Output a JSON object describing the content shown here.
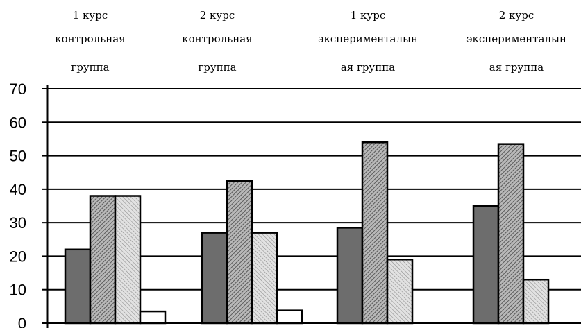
{
  "chart_data": {
    "type": "bar",
    "title": "",
    "xlabel": "",
    "ylabel": "",
    "ylim": [
      0,
      70
    ],
    "yticks": [
      0,
      10,
      20,
      30,
      40,
      50,
      60,
      70
    ],
    "grid": true,
    "legend": "none",
    "categories": [
      [
        "1 курс",
        "контрольная",
        "группа"
      ],
      [
        "2 курс",
        "контрольная",
        "группа"
      ],
      [
        "1 курс",
        "эксперименталын",
        "ая группа"
      ],
      [
        "2 курс",
        "эксперименталын",
        "ая группа"
      ]
    ],
    "series": [
      {
        "values": [
          22,
          27,
          28.5,
          35
        ],
        "pattern": "solid-dark"
      },
      {
        "values": [
          38,
          42.5,
          54,
          53.5
        ],
        "pattern": "hatch-dark"
      },
      {
        "values": [
          38,
          27,
          19,
          13
        ],
        "pattern": "hatch-light"
      },
      {
        "values": [
          3.5,
          3.8,
          0,
          0
        ],
        "pattern": "white"
      }
    ],
    "colors": {
      "dark": "#6d6d6d",
      "axis": "#000000",
      "background": "#ffffff"
    }
  }
}
